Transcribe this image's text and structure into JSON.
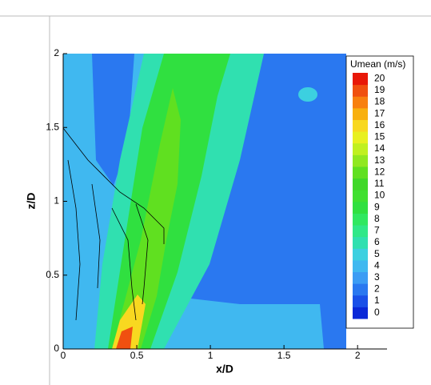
{
  "chart_data": {
    "type": "contour",
    "xlabel": "x/D",
    "ylabel": "z/D",
    "xlim": [
      0,
      2.2
    ],
    "ylim": [
      0,
      2
    ],
    "xticks": [
      0,
      0.5,
      1,
      1.5,
      2
    ],
    "yticks": [
      0,
      0.5,
      1,
      1.5,
      2
    ],
    "colorbar": {
      "title": "Umean (m/s)",
      "levels": [
        0,
        1,
        2,
        3,
        4,
        5,
        6,
        7,
        8,
        9,
        10,
        11,
        12,
        13,
        14,
        15,
        16,
        17,
        18,
        19,
        20
      ],
      "colors": [
        "#0a28d8",
        "#1a50e8",
        "#2a78f0",
        "#3c9cf4",
        "#40b8f0",
        "#3cd0e0",
        "#30e0b0",
        "#30e888",
        "#30e860",
        "#30e040",
        "#40e030",
        "#40d828",
        "#60e020",
        "#90e820",
        "#c0f020",
        "#e8f020",
        "#f8d820",
        "#f8b010",
        "#f88010",
        "#f05010",
        "#e81808"
      ]
    }
  }
}
